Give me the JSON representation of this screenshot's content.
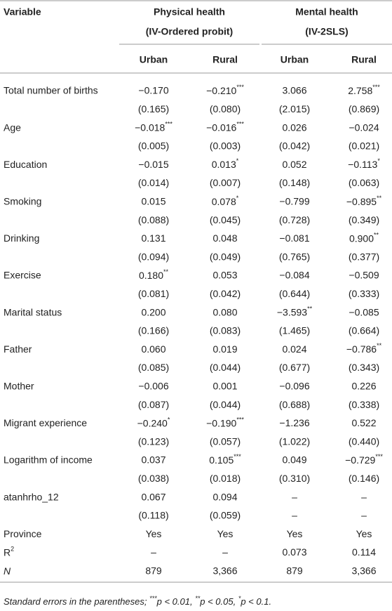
{
  "table": {
    "header": {
      "variable": "Variable",
      "groups": [
        {
          "title": "Physical health",
          "subtitle": "(IV-Ordered probit)"
        },
        {
          "title": "Mental health",
          "subtitle": "(IV-2SLS)"
        }
      ],
      "columns": [
        "Urban",
        "Rural",
        "Urban",
        "Rural"
      ]
    },
    "rows": [
      {
        "label": "Total number of births",
        "cells": [
          "−0.170",
          {
            "text": "−0.210",
            "sup": "***"
          },
          "3.066",
          {
            "text": "2.758",
            "sup": "***"
          }
        ]
      },
      {
        "cells": [
          "(0.165)",
          "(0.080)",
          "(2.015)",
          "(0.869)"
        ]
      },
      {
        "label": "Age",
        "cells": [
          {
            "text": "−0.018",
            "sup": "***"
          },
          {
            "text": "−0.016",
            "sup": "***"
          },
          "0.026",
          "−0.024"
        ]
      },
      {
        "cells": [
          "(0.005)",
          "(0.003)",
          "(0.042)",
          "(0.021)"
        ]
      },
      {
        "label": "Education",
        "cells": [
          "−0.015",
          {
            "text": "0.013",
            "sup": "*"
          },
          "0.052",
          {
            "text": "−0.113",
            "sup": "*"
          }
        ]
      },
      {
        "cells": [
          "(0.014)",
          "(0.007)",
          "(0.148)",
          "(0.063)"
        ]
      },
      {
        "label": "Smoking",
        "cells": [
          "0.015",
          {
            "text": "0.078",
            "sup": "*"
          },
          "−0.799",
          {
            "text": "−0.895",
            "sup": "**"
          }
        ]
      },
      {
        "cells": [
          "(0.088)",
          "(0.045)",
          "(0.728)",
          "(0.349)"
        ]
      },
      {
        "label": "Drinking",
        "cells": [
          "0.131",
          "0.048",
          "−0.081",
          {
            "text": "0.900",
            "sup": "**"
          }
        ]
      },
      {
        "cells": [
          "(0.094)",
          "(0.049)",
          "(0.765)",
          "(0.377)"
        ]
      },
      {
        "label": "Exercise",
        "cells": [
          {
            "text": "0.180",
            "sup": "**"
          },
          "0.053",
          "−0.084",
          "−0.509"
        ]
      },
      {
        "cells": [
          "(0.081)",
          "(0.042)",
          "(0.644)",
          "(0.333)"
        ]
      },
      {
        "label": "Marital status",
        "cells": [
          "0.200",
          "0.080",
          {
            "text": "−3.593",
            "sup": "**"
          },
          "−0.085"
        ]
      },
      {
        "cells": [
          "(0.166)",
          "(0.083)",
          "(1.465)",
          "(0.664)"
        ]
      },
      {
        "label": "Father",
        "cells": [
          "0.060",
          "0.019",
          "0.024",
          {
            "text": "−0.786",
            "sup": "**"
          }
        ]
      },
      {
        "cells": [
          "(0.085)",
          "(0.044)",
          "(0.677)",
          "(0.343)"
        ]
      },
      {
        "label": "Mother",
        "cells": [
          "−0.006",
          "0.001",
          "−0.096",
          "0.226"
        ]
      },
      {
        "cells": [
          "(0.087)",
          "(0.044)",
          "(0.688)",
          "(0.338)"
        ]
      },
      {
        "label": "Migrant experience",
        "cells": [
          {
            "text": "−0.240",
            "sup": "*"
          },
          {
            "text": "−0.190",
            "sup": "***"
          },
          "−1.236",
          "0.522"
        ]
      },
      {
        "cells": [
          "(0.123)",
          "(0.057)",
          "(1.022)",
          "(0.440)"
        ]
      },
      {
        "label": "Logarithm of income",
        "cells": [
          "0.037",
          {
            "text": "0.105",
            "sup": "***"
          },
          "0.049",
          {
            "text": "−0.729",
            "sup": "***"
          }
        ]
      },
      {
        "cells": [
          "(0.038)",
          "(0.018)",
          "(0.310)",
          "(0.146)"
        ]
      },
      {
        "label": "atanhrho_12",
        "cells": [
          "0.067",
          "0.094",
          "–",
          "–"
        ]
      },
      {
        "cells": [
          "(0.118)",
          "(0.059)",
          "–",
          "–"
        ]
      },
      {
        "label": "Province",
        "cells": [
          "Yes",
          "Yes",
          "Yes",
          "Yes"
        ]
      },
      {
        "label": {
          "text": "R",
          "sup": "2"
        },
        "cells": [
          "–",
          "–",
          "0.073",
          "0.114"
        ]
      },
      {
        "label": {
          "text": "N",
          "italic": true
        },
        "cells": [
          "879",
          "3,366",
          "879",
          "3,366"
        ]
      }
    ],
    "footnote": [
      "Standard errors in the parentheses; ",
      "***",
      "p < 0.01, ",
      "**",
      "p < 0.05, ",
      "*",
      "p < 0.1."
    ]
  }
}
